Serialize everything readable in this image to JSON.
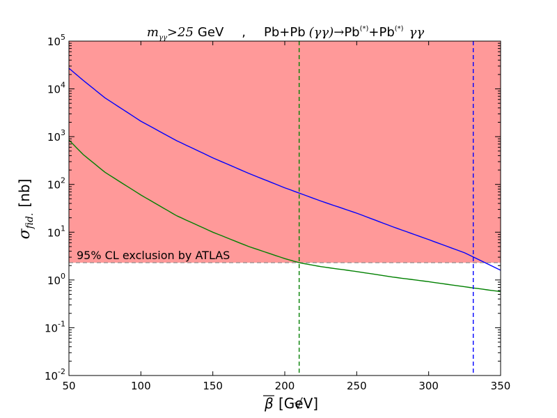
{
  "chart_data": {
    "type": "line",
    "title": {
      "cut_var": "m",
      "cut_sub": "γγ",
      "cut_rest": ">25",
      "cut_unit": "GeV",
      "sep": ",",
      "proc_a": "Pb+Pb",
      "proc_b": "(γγ)→",
      "proc_c": "Pb",
      "proc_star": "(*)",
      "proc_d": "+Pb",
      "proc_e": "γγ"
    },
    "xlabel": {
      "sym": "β",
      "unit": "[GeV]"
    },
    "ylabel": {
      "sym": "σ",
      "sub": "fid.",
      "unit": "[nb]"
    },
    "xlim": [
      50,
      350
    ],
    "ylim": [
      0.01,
      100000
    ],
    "yscale": "log",
    "xticks": [
      "50",
      "100",
      "150",
      "200",
      "250",
      "300",
      "350"
    ],
    "yticks": [
      {
        "base": "10",
        "exp": "-2"
      },
      {
        "base": "10",
        "exp": "-1"
      },
      {
        "base": "10",
        "exp": "0"
      },
      {
        "base": "10",
        "exp": "1"
      },
      {
        "base": "10",
        "exp": "2"
      },
      {
        "base": "10",
        "exp": "3"
      },
      {
        "base": "10",
        "exp": "4"
      },
      {
        "base": "10",
        "exp": "5"
      }
    ],
    "exclusion": {
      "label": "95% CL exclusion by ATLAS",
      "limit": 2.3,
      "color": "#ff9999",
      "line_color": "#888888"
    },
    "series": [
      {
        "name": "blue-curve",
        "color": "#0000ff",
        "x": [
          50,
          60,
          75,
          100,
          125,
          150,
          175,
          200,
          225,
          250,
          275,
          300,
          325,
          350
        ],
        "y": [
          27000,
          15000,
          6500,
          2100,
          820,
          360,
          170,
          85,
          45,
          25,
          13,
          7,
          3.7,
          1.6
        ]
      },
      {
        "name": "green-curve",
        "color": "#008000",
        "x": [
          50,
          60,
          75,
          100,
          125,
          150,
          175,
          200,
          210,
          225,
          250,
          275,
          300,
          325,
          350
        ],
        "y": [
          850,
          420,
          180,
          60,
          22,
          10,
          5,
          2.8,
          2.3,
          1.9,
          1.5,
          1.15,
          0.92,
          0.72,
          0.57
        ]
      }
    ],
    "vlines": [
      {
        "x": 210,
        "color": "#008000"
      },
      {
        "x": 331,
        "color": "#0000ff"
      }
    ]
  }
}
